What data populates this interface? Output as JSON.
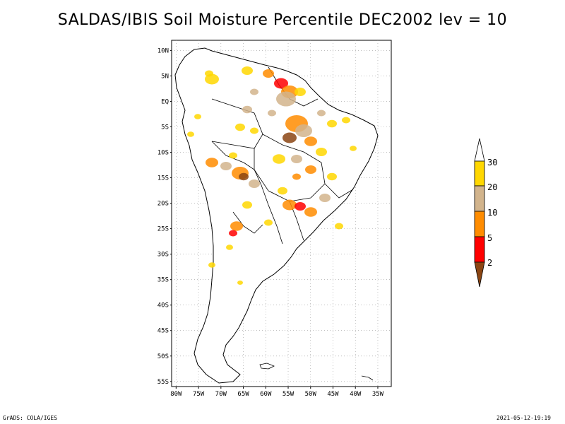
{
  "title": "SALDAS/IBIS Soil Moisture Percentile DEC2002 lev = 10",
  "footer": {
    "left": "GrADS: COLA/IGES",
    "right": "2021-05-12-19:19"
  },
  "map": {
    "lat_ticks": [
      "10N",
      "5N",
      "EQ",
      "5S",
      "10S",
      "15S",
      "20S",
      "25S",
      "30S",
      "35S",
      "40S",
      "45S",
      "50S",
      "55S"
    ],
    "lon_ticks": [
      "80W",
      "75W",
      "70W",
      "65W",
      "60W",
      "55W",
      "50W",
      "45W",
      "40W",
      "35W"
    ],
    "grid": true,
    "projection": "lat-lon",
    "extent": {
      "lon": [
        -81,
        -32
      ],
      "lat": [
        -56,
        12
      ]
    }
  },
  "colorbar": {
    "labels": [
      "2",
      "5",
      "10",
      "20",
      "30"
    ],
    "colors": {
      "below_2": "#8b4513",
      "2_5": "#ff0000",
      "5_10": "#ff8c00",
      "10_20": "#d2b48c",
      "20_30": "#ffd700",
      "above_30": "#ffffff"
    }
  }
}
